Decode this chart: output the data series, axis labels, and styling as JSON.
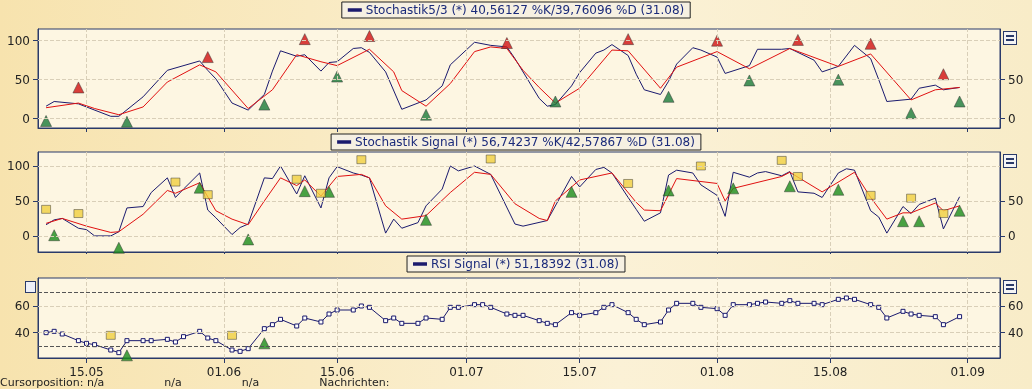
{
  "chart_data": [
    {
      "type": "line",
      "xlim": [
        "--05-09",
        "--09-05"
      ],
      "xticks": [
        {
          "value": "--05-15",
          "label": null
        },
        {
          "value": "--06-01",
          "label": null
        },
        {
          "value": "--06-15",
          "label": null
        },
        {
          "value": "--07-01",
          "label": null
        },
        {
          "value": "--07-15",
          "label": null
        },
        {
          "value": "--08-01",
          "label": null
        },
        {
          "value": "--08-15",
          "label": null
        },
        {
          "value": "--09-01",
          "label": null
        }
      ],
      "ylim": [
        -12,
        115
      ],
      "yticks": [
        0,
        50,
        100
      ],
      "y2lim": [
        -12,
        115
      ],
      "y2ticks": [
        0,
        50
      ],
      "tick_labels": "y",
      "grid": true,
      "legend": "top",
      "marker": "none",
      "line_style": "solid",
      "series": [
        {
          "name": "Stochastik5/3 (*) 40,56127 %K/39,76096 %D (31.08)",
          "color": "#1a1a6e",
          "x": [
            "--05-10",
            "--05-11",
            "--05-14",
            "--05-18",
            "--05-19",
            "--05-22",
            "--05-25",
            "--05-29",
            "--05-30",
            "--05-31",
            "--06-02",
            "--06-04",
            "--06-06",
            "--06-07",
            "--06-08",
            "--06-10",
            "--06-11",
            "--06-13",
            "--06-14",
            "--06-15",
            "--06-17",
            "--06-18",
            "--06-19",
            "--06-21",
            "--06-23",
            "--06-26",
            "--06-28",
            "--06-29",
            "--07-02",
            "--07-04",
            "--07-06",
            "--07-07",
            "--07-10",
            "--07-11",
            "--07-12",
            "--07-14",
            "--07-15",
            "--07-17",
            "--07-18",
            "--07-19",
            "--07-21",
            "--07-22",
            "--07-23",
            "--07-25",
            "--07-26",
            "--07-27",
            "--07-29",
            "--07-30",
            "--08-01",
            "--08-02",
            "--08-05",
            "--08-06",
            "--08-09",
            "--08-10",
            "--08-13",
            "--08-14",
            "--08-16",
            "--08-18",
            "--08-20",
            "--08-21",
            "--08-22",
            "--08-25",
            "--08-26",
            "--08-28",
            "--08-29",
            "--08-31"
          ],
          "values": [
            16,
            22,
            19,
            3,
            3,
            28,
            62,
            74,
            62,
            51,
            20,
            11,
            31,
            61,
            87,
            80,
            82,
            61,
            72,
            73,
            90,
            91,
            85,
            60,
            12,
            24,
            42,
            69,
            98,
            94,
            92,
            77,
            26,
            16,
            18,
            42,
            59,
            84,
            88,
            95,
            81,
            57,
            37,
            31,
            48,
            70,
            91,
            88,
            79,
            58,
            68,
            89,
            89,
            90,
            75,
            60,
            67,
            94,
            77,
            50,
            22,
            25,
            39,
            43,
            37,
            40
          ]
        },
        {
          "color": "#e01010",
          "x": [
            "--05-10",
            "--05-14",
            "--05-16",
            "--05-19",
            "--05-22",
            "--05-25",
            "--05-29",
            "--05-31",
            "--06-04",
            "--06-07",
            "--06-10",
            "--06-13",
            "--06-15",
            "--06-19",
            "--06-22",
            "--06-23",
            "--06-26",
            "--06-29",
            "--07-02",
            "--07-04",
            "--07-06",
            "--07-08",
            "--07-10",
            "--07-12",
            "--07-15",
            "--07-19",
            "--07-21",
            "--07-25",
            "--07-27",
            "--08-01",
            "--08-05",
            "--08-10",
            "--08-16",
            "--08-20",
            "--08-25",
            "--08-28",
            "--08-31"
          ],
          "values": [
            14,
            20,
            13,
            5,
            15,
            47,
            69,
            60,
            13,
            37,
            82,
            73,
            68,
            89,
            60,
            36,
            16,
            45,
            86,
            92,
            90,
            62,
            40,
            20,
            39,
            88,
            87,
            39,
            66,
            86,
            64,
            90,
            67,
            83,
            24,
            37,
            40
          ]
        },
        {
          "type": "scatter",
          "marker": "triangle",
          "color": "#d01010",
          "x": [
            "--05-14",
            "--05-30",
            "--06-11",
            "--06-19",
            "--07-06",
            "--07-21",
            "--08-01",
            "--08-11",
            "--08-20",
            "--08-29"
          ],
          "values": [
            40,
            79,
            102,
            106,
            97,
            102,
            100,
            101,
            96,
            57
          ]
        },
        {
          "type": "scatter",
          "marker": "triangle",
          "color": "#1a7a3a",
          "x": [
            "--05-10",
            "--05-20",
            "--06-06",
            "--06-15",
            "--06-26",
            "--07-12",
            "--07-26",
            "--08-05",
            "--08-16",
            "--08-25",
            "--08-31"
          ],
          "values": [
            -3,
            -4,
            18,
            54,
            5,
            22,
            28,
            49,
            50,
            7,
            22
          ]
        }
      ]
    },
    {
      "type": "line",
      "xlim": [
        "--05-09",
        "--09-05"
      ],
      "xticks": [
        {
          "value": "--05-15",
          "label": null
        },
        {
          "value": "--06-01",
          "label": null
        },
        {
          "value": "--06-15",
          "label": null
        },
        {
          "value": "--07-01",
          "label": null
        },
        {
          "value": "--07-15",
          "label": null
        },
        {
          "value": "--08-01",
          "label": null
        },
        {
          "value": "--08-15",
          "label": null
        },
        {
          "value": "--09-01",
          "label": null
        }
      ],
      "ylim": [
        -23,
        120
      ],
      "yticks": [
        0,
        50,
        100
      ],
      "y2lim": [
        -23,
        120
      ],
      "y2ticks": [
        0,
        50
      ],
      "tick_labels": "y",
      "grid": true,
      "legend": "top",
      "marker": "none",
      "line_style": "solid",
      "series": [
        {
          "name": "Stochastik Signal (*) 56,74237 %K/42,57867 %D (31.08)",
          "color": "#1a1a6e",
          "x": [
            "--05-10",
            "--05-11",
            "--05-12",
            "--05-14",
            "--05-15",
            "--05-16",
            "--05-18",
            "--05-19",
            "--05-20",
            "--05-22",
            "--05-23",
            "--05-25",
            "--05-26",
            "--05-27",
            "--05-29",
            "--05-30",
            "--05-31",
            "--06-02",
            "--06-03",
            "--06-04",
            "--06-06",
            "--06-07",
            "--06-08",
            "--06-10",
            "--06-11",
            "--06-13",
            "--06-14",
            "--06-15",
            "--06-17",
            "--06-18",
            "--06-19",
            "--06-21",
            "--06-22",
            "--06-23",
            "--06-25",
            "--06-26",
            "--06-28",
            "--06-29",
            "--06-30",
            "--07-02",
            "--07-04",
            "--07-07",
            "--07-08",
            "--07-11",
            "--07-14",
            "--07-15",
            "--07-17",
            "--07-18",
            "--07-19",
            "--07-21",
            "--07-22",
            "--07-23",
            "--07-25",
            "--07-26",
            "--07-27",
            "--07-29",
            "--07-30",
            "--08-01",
            "--08-02",
            "--08-03",
            "--08-05",
            "--08-06",
            "--08-07",
            "--08-09",
            "--08-10",
            "--08-11",
            "--08-13",
            "--08-14",
            "--08-16",
            "--08-17",
            "--08-18",
            "--08-20",
            "--08-21",
            "--08-22",
            "--08-24",
            "--08-25",
            "--08-26",
            "--08-28",
            "--08-29",
            "--08-31"
          ],
          "values": [
            16,
            23,
            25,
            11,
            9,
            0,
            0,
            6,
            40,
            42,
            62,
            83,
            55,
            67,
            90,
            37,
            26,
            2,
            12,
            17,
            83,
            82,
            100,
            60,
            86,
            40,
            83,
            99,
            90,
            87,
            83,
            4,
            24,
            11,
            19,
            43,
            67,
            100,
            93,
            100,
            88,
            17,
            14,
            22,
            85,
            70,
            95,
            98,
            90,
            55,
            38,
            21,
            33,
            87,
            94,
            90,
            73,
            58,
            28,
            91,
            84,
            90,
            92,
            86,
            92,
            63,
            61,
            55,
            90,
            96,
            94,
            36,
            27,
            4,
            42,
            32,
            45,
            54,
            10,
            56
          ]
        },
        {
          "color": "#e01010",
          "x": [
            "--05-10",
            "--05-12",
            "--05-15",
            "--05-18",
            "--05-19",
            "--05-22",
            "--05-25",
            "--05-26",
            "--05-29",
            "--05-31",
            "--06-02",
            "--06-04",
            "--06-06",
            "--06-08",
            "--06-10",
            "--06-11",
            "--06-13",
            "--06-14",
            "--06-15",
            "--06-18",
            "--06-19",
            "--06-21",
            "--06-23",
            "--06-26",
            "--06-29",
            "--07-02",
            "--07-04",
            "--07-07",
            "--07-10",
            "--07-11",
            "--07-12",
            "--07-15",
            "--07-19",
            "--07-22",
            "--07-23",
            "--07-25",
            "--07-27",
            "--08-01",
            "--08-02",
            "--08-03",
            "--08-09",
            "--08-10",
            "--08-14",
            "--08-18",
            "--08-20",
            "--08-22",
            "--08-24",
            "--08-25",
            "--08-28",
            "--08-29",
            "--08-31"
          ],
          "values": [
            18,
            25,
            14,
            5,
            6,
            31,
            65,
            61,
            76,
            36,
            24,
            16,
            50,
            83,
            72,
            80,
            57,
            71,
            85,
            88,
            83,
            43,
            24,
            29,
            62,
            91,
            88,
            46,
            25,
            22,
            50,
            80,
            90,
            48,
            37,
            36,
            82,
            75,
            50,
            68,
            85,
            91,
            63,
            91,
            55,
            24,
            33,
            33,
            47,
            36,
            43
          ]
        },
        {
          "type": "scatter",
          "marker": "triangle",
          "color": "#1a8c1a",
          "x": [
            "--05-11",
            "--05-19",
            "--05-29",
            "--06-04",
            "--06-11",
            "--06-14",
            "--06-26",
            "--07-14",
            "--07-26",
            "--08-03",
            "--08-10",
            "--08-16",
            "--08-24",
            "--08-26",
            "--08-31"
          ],
          "values": [
            1,
            -17,
            69,
            -5,
            64,
            63,
            23,
            63,
            65,
            68,
            71,
            66,
            21,
            21,
            36
          ]
        },
        {
          "type": "scatter",
          "marker": "square",
          "color": "#f0d040",
          "x": [
            "--05-10",
            "--05-14",
            "--05-26",
            "--05-30",
            "--06-10",
            "--06-13",
            "--06-18",
            "--07-04",
            "--07-21",
            "--07-30",
            "--08-09",
            "--08-11",
            "--08-20",
            "--08-25",
            "--08-29"
          ],
          "values": [
            38,
            32,
            77,
            59,
            81,
            61,
            109,
            110,
            75,
            100,
            108,
            85,
            58,
            54,
            32
          ]
        }
      ]
    },
    {
      "type": "line",
      "xlim": [
        "--05-09",
        "--09-05"
      ],
      "xticks": [
        {
          "value": "--05-15",
          "label": "15.05"
        },
        {
          "value": "--06-01",
          "label": "01.06"
        },
        {
          "value": "--06-15",
          "label": "15.06"
        },
        {
          "value": "--07-01",
          "label": "01.07"
        },
        {
          "value": "--07-15",
          "label": "15.07"
        },
        {
          "value": "--08-01",
          "label": "01.08"
        },
        {
          "value": "--08-15",
          "label": "15.08"
        },
        {
          "value": "--09-01",
          "label": "01.09"
        }
      ],
      "ylim": [
        21,
        81
      ],
      "yticks": [
        40,
        60
      ],
      "y2lim": [
        21,
        81
      ],
      "y2ticks": [
        40,
        60
      ],
      "grid": true,
      "legend": "top",
      "marker": "square",
      "line_style": "solid",
      "ref_lines": [
        {
          "axis": "y",
          "value": 70,
          "color": "#555555",
          "line_style": "dashed"
        },
        {
          "axis": "y",
          "value": 30,
          "color": "#555555",
          "line_style": "dashed"
        }
      ],
      "annotations": [
        "Cursorposition: n/a",
        "n/a",
        "n/a",
        "Nachrichten:"
      ],
      "x": [
        "--05-10",
        "--05-11",
        "--05-12",
        "--05-14",
        "--05-15",
        "--05-16",
        "--05-18",
        "--05-19",
        "--05-20",
        "--05-22",
        "--05-23",
        "--05-25",
        "--05-26",
        "--05-27",
        "--05-29",
        "--05-30",
        "--05-31",
        "--06-02",
        "--06-03",
        "--06-04",
        "--06-06",
        "--06-07",
        "--06-08",
        "--06-10",
        "--06-11",
        "--06-13",
        "--06-14",
        "--06-15",
        "--06-17",
        "--06-18",
        "--06-19",
        "--06-21",
        "--06-22",
        "--06-23",
        "--06-25",
        "--06-26",
        "--06-28",
        "--06-29",
        "--06-30",
        "--07-02",
        "--07-03",
        "--07-04",
        "--07-06",
        "--07-07",
        "--07-08",
        "--07-10",
        "--07-11",
        "--07-12",
        "--07-14",
        "--07-15",
        "--07-17",
        "--07-18",
        "--07-19",
        "--07-21",
        "--07-22",
        "--07-23",
        "--07-25",
        "--07-26",
        "--07-27",
        "--07-29",
        "--07-30",
        "--08-01",
        "--08-02",
        "--08-03",
        "--08-05",
        "--08-06",
        "--08-07",
        "--08-09",
        "--08-10",
        "--08-11",
        "--08-13",
        "--08-14",
        "--08-16",
        "--08-17",
        "--08-18",
        "--08-20",
        "--08-21",
        "--08-22",
        "--08-24",
        "--08-25",
        "--08-26",
        "--08-28",
        "--08-29",
        "--08-31"
      ],
      "series": [
        {
          "name": "RSI Signal (*) 51,18392 (31.08)",
          "color": "#1a1a6e",
          "values": [
            40,
            41,
            39,
            34,
            32,
            31,
            27,
            25,
            34,
            34,
            34,
            35,
            33,
            37,
            41,
            36,
            34,
            27,
            26,
            28,
            43,
            46,
            50,
            45,
            51,
            48,
            54,
            57,
            57,
            60,
            59,
            49,
            51,
            47,
            47,
            51,
            50,
            59,
            59,
            61,
            61,
            59,
            54,
            53,
            53,
            49,
            47,
            46,
            55,
            53,
            55,
            59,
            61,
            55,
            50,
            46,
            48,
            57,
            62,
            62,
            59,
            58,
            53,
            61,
            61,
            62,
            63,
            62,
            64,
            62,
            62,
            61,
            65,
            66,
            65,
            61,
            59,
            51,
            56,
            54,
            53,
            52,
            46,
            52
          ]
        },
        {
          "type": "scatter",
          "marker": "triangle",
          "color": "#1a8c1a",
          "x": [
            "--05-20",
            "--06-06"
          ],
          "values": [
            23,
            32
          ]
        },
        {
          "type": "scatter",
          "marker": "square",
          "color": "#f0d040",
          "x": [
            "--05-18",
            "--06-02"
          ],
          "values": [
            38,
            38
          ]
        }
      ]
    }
  ]
}
